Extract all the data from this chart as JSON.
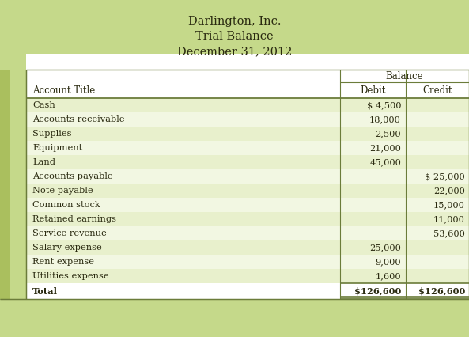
{
  "title_lines": [
    "Darlington, Inc.",
    "Trial Balance",
    "December 31, 2012"
  ],
  "header_bg": "#c5d98a",
  "row_bg_light": "#e8f0cc",
  "row_bg_white": "#f2f7e2",
  "total_bg": "#f2f7e2",
  "border_color": "#6b7c3a",
  "text_color": "#2a2a10",
  "strip1_color": "#aabf5e",
  "strip2_color": "#c5d98a",
  "col_headers": [
    "Account Title",
    "Debit",
    "Credit"
  ],
  "balance_label": "Balance",
  "rows": [
    {
      "account": "Cash",
      "debit": "$ 4,500",
      "credit": ""
    },
    {
      "account": "Accounts receivable",
      "debit": "18,000",
      "credit": ""
    },
    {
      "account": "Supplies",
      "debit": "2,500",
      "credit": ""
    },
    {
      "account": "Equipment",
      "debit": "21,000",
      "credit": ""
    },
    {
      "account": "Land",
      "debit": "45,000",
      "credit": ""
    },
    {
      "account": "Accounts payable",
      "debit": "",
      "credit": "$ 25,000"
    },
    {
      "account": "Note payable",
      "debit": "",
      "credit": "22,000"
    },
    {
      "account": "Common stock",
      "debit": "",
      "credit": "15,000"
    },
    {
      "account": "Retained earnings",
      "debit": "",
      "credit": "11,000"
    },
    {
      "account": "Service revenue",
      "debit": "",
      "credit": "53,600"
    },
    {
      "account": "Salary expense",
      "debit": "25,000",
      "credit": ""
    },
    {
      "account": "Rent expense",
      "debit": "9,000",
      "credit": ""
    },
    {
      "account": "Utilities expense",
      "debit": "1,600",
      "credit": ""
    },
    {
      "account": "Total",
      "debit": "$126,600",
      "credit": "$126,600"
    }
  ],
  "figsize": [
    5.93,
    4.26
  ],
  "dpi": 100
}
